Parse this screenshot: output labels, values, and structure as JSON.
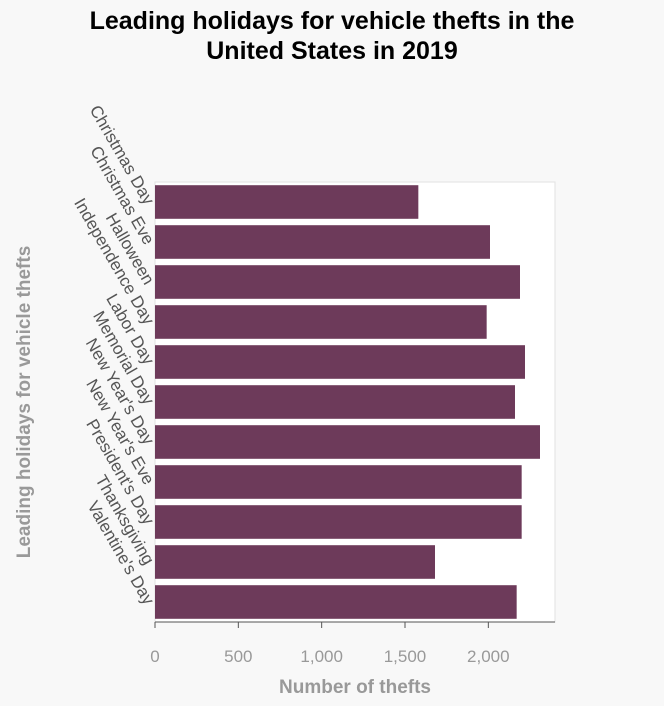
{
  "chart_data": {
    "type": "bar",
    "orientation": "horizontal",
    "title_lines": [
      "Leading holidays for vehicle thefts in the",
      "United States in 2019"
    ],
    "xlabel": "Number of thefts",
    "ylabel": "Leading holidays for vehicle thefts",
    "categories": [
      "Christmas Day",
      "Christmas Eve",
      "Halloween",
      "Independence Day",
      "Labor Day",
      "Memorial Day",
      "New Year's Day",
      "New Year's Eve",
      "President's Day",
      "Thanksgiving",
      "Valentine's Day"
    ],
    "values": [
      1580,
      2010,
      2190,
      1990,
      2220,
      2160,
      2310,
      2200,
      2200,
      1680,
      2170
    ],
    "xlim": [
      0,
      2400
    ],
    "xticks": [
      0,
      500,
      1000,
      1500,
      2000
    ],
    "xtick_labels": [
      "0",
      "500",
      "1,000",
      "1,500",
      "2,000"
    ],
    "bar_color": "#6d3a5a",
    "grid": false
  }
}
